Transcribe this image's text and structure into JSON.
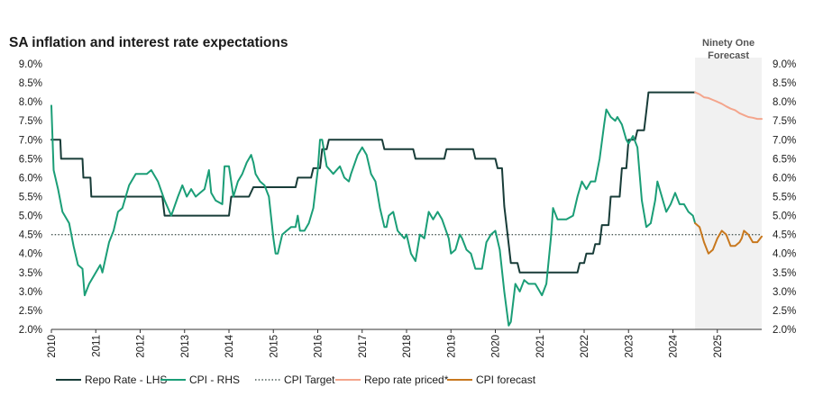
{
  "colors": {
    "repo": "#183c38",
    "cpi": "#1b9e77",
    "target": "#4a5a56",
    "repo_priced": "#f4a58c",
    "cpi_forecast": "#c8781e",
    "forecast_band": "#f1f1f1"
  },
  "chart_data": {
    "type": "line",
    "title": "SA inflation and interest rate expectations",
    "forecast_label": [
      "Ninety One",
      "Forecast"
    ],
    "forecast_start": 2024.5,
    "xlim": [
      2010,
      2026
    ],
    "ylim": [
      2.0,
      9.0
    ],
    "y_ticks": [
      "2.0%",
      "2.5%",
      "3.0%",
      "3.5%",
      "4.0%",
      "4.5%",
      "5.0%",
      "5.5%",
      "6.0%",
      "6.5%",
      "7.0%",
      "7.5%",
      "8.0%",
      "8.5%",
      "9.0%"
    ],
    "x_ticks": [
      "2010",
      "2011",
      "2012",
      "2013",
      "2014",
      "2015",
      "2016",
      "2017",
      "2018",
      "2019",
      "2020",
      "2021",
      "2022",
      "2023",
      "2024",
      "2025"
    ],
    "legend": [
      "Repo Rate - LHS",
      "CPI - RHS",
      "CPI Target",
      "Repo rate priced*",
      "CPI forecast"
    ],
    "cpi_target": 4.5,
    "series": [
      {
        "name": "Repo Rate - LHS",
        "points": [
          [
            2010,
            7.0
          ],
          [
            2010.2,
            7.0
          ],
          [
            2010.22,
            6.5
          ],
          [
            2010.7,
            6.5
          ],
          [
            2010.72,
            6.0
          ],
          [
            2010.88,
            6.0
          ],
          [
            2010.9,
            5.5
          ],
          [
            2012.5,
            5.5
          ],
          [
            2012.55,
            5.0
          ],
          [
            2014.0,
            5.0
          ],
          [
            2014.05,
            5.5
          ],
          [
            2014.45,
            5.5
          ],
          [
            2014.55,
            5.75
          ],
          [
            2015.5,
            5.75
          ],
          [
            2015.55,
            6.0
          ],
          [
            2015.85,
            6.0
          ],
          [
            2015.9,
            6.25
          ],
          [
            2016.05,
            6.25
          ],
          [
            2016.1,
            6.75
          ],
          [
            2016.2,
            6.75
          ],
          [
            2016.25,
            7.0
          ],
          [
            2017.45,
            7.0
          ],
          [
            2017.5,
            6.75
          ],
          [
            2018.15,
            6.75
          ],
          [
            2018.2,
            6.5
          ],
          [
            2018.85,
            6.5
          ],
          [
            2018.9,
            6.75
          ],
          [
            2019.5,
            6.75
          ],
          [
            2019.55,
            6.5
          ],
          [
            2020.0,
            6.5
          ],
          [
            2020.05,
            6.25
          ],
          [
            2020.15,
            6.25
          ],
          [
            2020.2,
            5.25
          ],
          [
            2020.3,
            4.25
          ],
          [
            2020.35,
            3.75
          ],
          [
            2020.5,
            3.75
          ],
          [
            2020.55,
            3.5
          ],
          [
            2021.85,
            3.5
          ],
          [
            2021.9,
            3.75
          ],
          [
            2022.0,
            3.75
          ],
          [
            2022.05,
            4.0
          ],
          [
            2022.2,
            4.0
          ],
          [
            2022.25,
            4.25
          ],
          [
            2022.35,
            4.25
          ],
          [
            2022.4,
            4.75
          ],
          [
            2022.55,
            4.75
          ],
          [
            2022.6,
            5.5
          ],
          [
            2022.8,
            5.5
          ],
          [
            2022.85,
            6.25
          ],
          [
            2022.95,
            6.25
          ],
          [
            2023.0,
            7.0
          ],
          [
            2023.15,
            7.0
          ],
          [
            2023.2,
            7.25
          ],
          [
            2023.35,
            7.25
          ],
          [
            2023.4,
            7.75
          ],
          [
            2023.45,
            8.25
          ],
          [
            2024.5,
            8.25
          ]
        ]
      },
      {
        "name": "CPI - RHS",
        "points": [
          [
            2010,
            7.9
          ],
          [
            2010.05,
            6.2
          ],
          [
            2010.15,
            5.7
          ],
          [
            2010.25,
            5.1
          ],
          [
            2010.4,
            4.8
          ],
          [
            2010.5,
            4.2
          ],
          [
            2010.6,
            3.7
          ],
          [
            2010.7,
            3.6
          ],
          [
            2010.75,
            2.9
          ],
          [
            2010.85,
            3.2
          ],
          [
            2011.0,
            3.5
          ],
          [
            2011.1,
            3.7
          ],
          [
            2011.15,
            3.5
          ],
          [
            2011.3,
            4.3
          ],
          [
            2011.4,
            4.6
          ],
          [
            2011.5,
            5.1
          ],
          [
            2011.6,
            5.2
          ],
          [
            2011.75,
            5.8
          ],
          [
            2011.9,
            6.1
          ],
          [
            2012.05,
            6.1
          ],
          [
            2012.15,
            6.1
          ],
          [
            2012.25,
            6.2
          ],
          [
            2012.4,
            5.9
          ],
          [
            2012.55,
            5.4
          ],
          [
            2012.7,
            5.0
          ],
          [
            2012.85,
            5.5
          ],
          [
            2012.95,
            5.8
          ],
          [
            2013.05,
            5.5
          ],
          [
            2013.15,
            5.7
          ],
          [
            2013.25,
            5.5
          ],
          [
            2013.35,
            5.6
          ],
          [
            2013.45,
            5.7
          ],
          [
            2013.55,
            6.2
          ],
          [
            2013.6,
            5.6
          ],
          [
            2013.7,
            5.4
          ],
          [
            2013.85,
            5.3
          ],
          [
            2013.9,
            6.3
          ],
          [
            2014.0,
            6.3
          ],
          [
            2014.1,
            5.5
          ],
          [
            2014.2,
            5.9
          ],
          [
            2014.3,
            6.1
          ],
          [
            2014.4,
            6.4
          ],
          [
            2014.5,
            6.6
          ],
          [
            2014.55,
            6.4
          ],
          [
            2014.6,
            6.1
          ],
          [
            2014.7,
            5.9
          ],
          [
            2014.8,
            5.8
          ],
          [
            2014.9,
            5.5
          ],
          [
            2015.0,
            4.4
          ],
          [
            2015.05,
            4.0
          ],
          [
            2015.1,
            4.0
          ],
          [
            2015.2,
            4.5
          ],
          [
            2015.3,
            4.6
          ],
          [
            2015.4,
            4.7
          ],
          [
            2015.5,
            4.7
          ],
          [
            2015.55,
            5.0
          ],
          [
            2015.6,
            4.6
          ],
          [
            2015.7,
            4.6
          ],
          [
            2015.8,
            4.8
          ],
          [
            2015.9,
            5.2
          ],
          [
            2016.0,
            6.2
          ],
          [
            2016.05,
            7.0
          ],
          [
            2016.1,
            7.0
          ],
          [
            2016.2,
            6.3
          ],
          [
            2016.35,
            6.1
          ],
          [
            2016.5,
            6.3
          ],
          [
            2016.6,
            6.0
          ],
          [
            2016.7,
            5.9
          ],
          [
            2016.75,
            6.1
          ],
          [
            2016.9,
            6.6
          ],
          [
            2017.0,
            6.8
          ],
          [
            2017.1,
            6.6
          ],
          [
            2017.2,
            6.1
          ],
          [
            2017.3,
            5.9
          ],
          [
            2017.4,
            5.2
          ],
          [
            2017.5,
            4.7
          ],
          [
            2017.55,
            4.7
          ],
          [
            2017.6,
            5.0
          ],
          [
            2017.7,
            5.1
          ],
          [
            2017.8,
            4.6
          ],
          [
            2017.95,
            4.4
          ],
          [
            2018.0,
            4.5
          ],
          [
            2018.1,
            4.0
          ],
          [
            2018.2,
            3.8
          ],
          [
            2018.3,
            4.5
          ],
          [
            2018.4,
            4.4
          ],
          [
            2018.5,
            5.1
          ],
          [
            2018.6,
            4.9
          ],
          [
            2018.7,
            5.1
          ],
          [
            2018.8,
            4.9
          ],
          [
            2018.95,
            4.4
          ],
          [
            2019.0,
            4.0
          ],
          [
            2019.1,
            4.1
          ],
          [
            2019.2,
            4.5
          ],
          [
            2019.25,
            4.4
          ],
          [
            2019.35,
            4.1
          ],
          [
            2019.45,
            4.0
          ],
          [
            2019.55,
            3.6
          ],
          [
            2019.7,
            3.6
          ],
          [
            2019.8,
            4.3
          ],
          [
            2019.9,
            4.5
          ],
          [
            2020.0,
            4.6
          ],
          [
            2020.1,
            4.1
          ],
          [
            2020.2,
            3.0
          ],
          [
            2020.3,
            2.1
          ],
          [
            2020.35,
            2.2
          ],
          [
            2020.45,
            3.2
          ],
          [
            2020.55,
            3.0
          ],
          [
            2020.65,
            3.3
          ],
          [
            2020.75,
            3.2
          ],
          [
            2020.9,
            3.2
          ],
          [
            2020.95,
            3.1
          ],
          [
            2021.05,
            2.9
          ],
          [
            2021.15,
            3.2
          ],
          [
            2021.25,
            4.4
          ],
          [
            2021.3,
            5.2
          ],
          [
            2021.4,
            4.9
          ],
          [
            2021.5,
            4.9
          ],
          [
            2021.6,
            4.9
          ],
          [
            2021.75,
            5.0
          ],
          [
            2021.85,
            5.5
          ],
          [
            2021.95,
            5.9
          ],
          [
            2022.05,
            5.7
          ],
          [
            2022.15,
            5.9
          ],
          [
            2022.25,
            5.9
          ],
          [
            2022.35,
            6.5
          ],
          [
            2022.45,
            7.4
          ],
          [
            2022.5,
            7.8
          ],
          [
            2022.6,
            7.6
          ],
          [
            2022.7,
            7.5
          ],
          [
            2022.75,
            7.6
          ],
          [
            2022.85,
            7.4
          ],
          [
            2022.95,
            7.0
          ],
          [
            2023.0,
            6.9
          ],
          [
            2023.1,
            7.1
          ],
          [
            2023.2,
            6.8
          ],
          [
            2023.3,
            5.4
          ],
          [
            2023.4,
            4.7
          ],
          [
            2023.5,
            4.8
          ],
          [
            2023.6,
            5.4
          ],
          [
            2023.65,
            5.9
          ],
          [
            2023.75,
            5.5
          ],
          [
            2023.85,
            5.1
          ],
          [
            2023.95,
            5.3
          ],
          [
            2024.05,
            5.6
          ],
          [
            2024.15,
            5.3
          ],
          [
            2024.25,
            5.3
          ],
          [
            2024.35,
            5.1
          ],
          [
            2024.45,
            5.0
          ],
          [
            2024.5,
            4.8
          ]
        ]
      },
      {
        "name": "Repo rate priced*",
        "points": [
          [
            2024.5,
            8.25
          ],
          [
            2024.6,
            8.2
          ],
          [
            2024.7,
            8.12
          ],
          [
            2024.8,
            8.1
          ],
          [
            2024.9,
            8.05
          ],
          [
            2025.0,
            8.0
          ],
          [
            2025.1,
            7.95
          ],
          [
            2025.2,
            7.88
          ],
          [
            2025.3,
            7.82
          ],
          [
            2025.4,
            7.78
          ],
          [
            2025.5,
            7.7
          ],
          [
            2025.6,
            7.65
          ],
          [
            2025.7,
            7.6
          ],
          [
            2025.8,
            7.58
          ],
          [
            2025.9,
            7.55
          ],
          [
            2026.0,
            7.55
          ]
        ]
      },
      {
        "name": "CPI forecast",
        "points": [
          [
            2024.5,
            4.8
          ],
          [
            2024.6,
            4.7
          ],
          [
            2024.7,
            4.3
          ],
          [
            2024.8,
            4.0
          ],
          [
            2024.9,
            4.1
          ],
          [
            2025.0,
            4.4
          ],
          [
            2025.1,
            4.6
          ],
          [
            2025.2,
            4.5
          ],
          [
            2025.3,
            4.2
          ],
          [
            2025.4,
            4.2
          ],
          [
            2025.5,
            4.3
          ],
          [
            2025.55,
            4.4
          ],
          [
            2025.6,
            4.6
          ],
          [
            2025.7,
            4.5
          ],
          [
            2025.8,
            4.3
          ],
          [
            2025.9,
            4.3
          ],
          [
            2026.0,
            4.45
          ]
        ]
      }
    ]
  }
}
